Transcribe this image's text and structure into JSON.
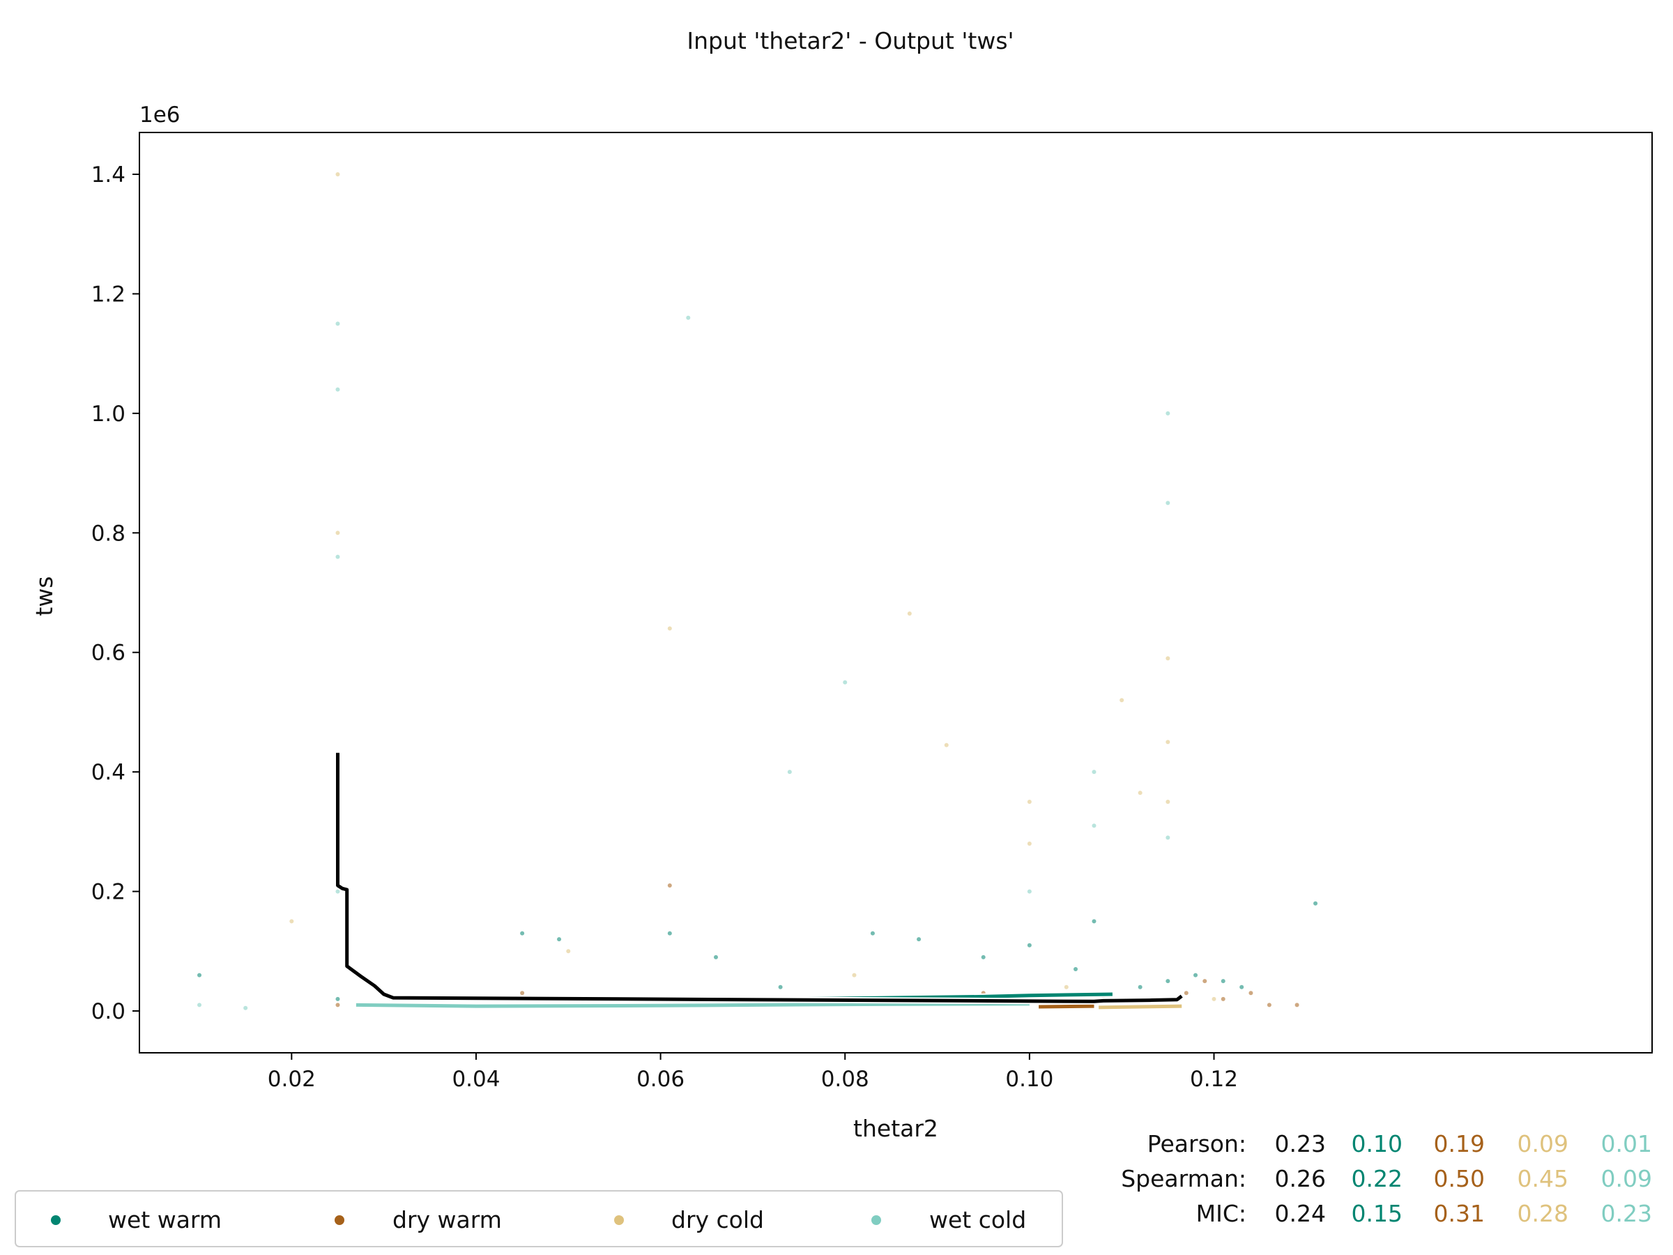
{
  "chart_data": {
    "type": "scatter",
    "title": "Input 'thetar2' - Output 'tws'",
    "xlabel": "thetar2",
    "ylabel": "tws",
    "y_offset_label": "1e6",
    "xlim": [
      0.0035,
      0.1675
    ],
    "ylim": [
      -0.07,
      1.47
    ],
    "x_ticks": [
      0.02,
      0.04,
      0.06,
      0.08,
      0.1,
      0.12
    ],
    "x_tick_labels": [
      "0.02",
      "0.04",
      "0.06",
      "0.08",
      "0.10",
      "0.12"
    ],
    "y_ticks": [
      0.0,
      0.2,
      0.4,
      0.6,
      0.8,
      1.0,
      1.2,
      1.4
    ],
    "y_tick_labels": [
      "0.0",
      "0.2",
      "0.4",
      "0.6",
      "0.8",
      "1.0",
      "1.2",
      "1.4"
    ],
    "grid": false,
    "legend_position": "bottom-left, below axes",
    "series": [
      {
        "name": "wet warm",
        "color": "#018571",
        "points": [
          [
            0.01,
            0.06
          ],
          [
            0.025,
            0.02
          ],
          [
            0.045,
            0.13
          ],
          [
            0.049,
            0.12
          ],
          [
            0.061,
            0.13
          ],
          [
            0.066,
            0.09
          ],
          [
            0.073,
            0.04
          ],
          [
            0.083,
            0.13
          ],
          [
            0.088,
            0.12
          ],
          [
            0.095,
            0.09
          ],
          [
            0.1,
            0.11
          ],
          [
            0.105,
            0.07
          ],
          [
            0.107,
            0.15
          ],
          [
            0.112,
            0.04
          ],
          [
            0.115,
            0.05
          ],
          [
            0.118,
            0.06
          ],
          [
            0.121,
            0.05
          ],
          [
            0.123,
            0.04
          ],
          [
            0.131,
            0.18
          ]
        ],
        "trend": [
          [
            0.0685,
            0.019
          ],
          [
            0.095,
            0.024
          ],
          [
            0.1,
            0.026
          ],
          [
            0.109,
            0.028
          ]
        ]
      },
      {
        "name": "dry warm",
        "color": "#a6611a",
        "points": [
          [
            0.025,
            0.01
          ],
          [
            0.045,
            0.03
          ],
          [
            0.061,
            0.21
          ],
          [
            0.08,
            0.02
          ],
          [
            0.095,
            0.03
          ],
          [
            0.1,
            0.02
          ],
          [
            0.108,
            0.02
          ],
          [
            0.117,
            0.03
          ],
          [
            0.119,
            0.05
          ],
          [
            0.121,
            0.02
          ],
          [
            0.124,
            0.03
          ],
          [
            0.126,
            0.01
          ],
          [
            0.129,
            0.01
          ]
        ],
        "trend": [
          [
            0.101,
            0.007
          ],
          [
            0.107,
            0.008
          ]
        ]
      },
      {
        "name": "dry cold",
        "color": "#dfc27d",
        "points": [
          [
            0.025,
            1.4
          ],
          [
            0.025,
            0.8
          ],
          [
            0.061,
            0.64
          ],
          [
            0.087,
            0.665
          ],
          [
            0.091,
            0.445
          ],
          [
            0.1,
            0.35
          ],
          [
            0.1,
            0.28
          ],
          [
            0.11,
            0.52
          ],
          [
            0.112,
            0.365
          ],
          [
            0.115,
            0.59
          ],
          [
            0.115,
            0.45
          ],
          [
            0.115,
            0.35
          ],
          [
            0.02,
            0.15
          ],
          [
            0.05,
            0.1
          ],
          [
            0.064,
            0.02
          ],
          [
            0.081,
            0.06
          ],
          [
            0.104,
            0.04
          ],
          [
            0.12,
            0.02
          ]
        ],
        "trend": [
          [
            0.1075,
            0.006
          ],
          [
            0.1165,
            0.008
          ]
        ]
      },
      {
        "name": "wet cold",
        "color": "#80cdc1",
        "points": [
          [
            0.01,
            0.01
          ],
          [
            0.015,
            0.005
          ],
          [
            0.025,
            0.2
          ],
          [
            0.025,
            1.15
          ],
          [
            0.025,
            1.04
          ],
          [
            0.025,
            0.76
          ],
          [
            0.063,
            1.16
          ],
          [
            0.074,
            0.4
          ],
          [
            0.08,
            0.55
          ],
          [
            0.1,
            0.2
          ],
          [
            0.107,
            0.4
          ],
          [
            0.107,
            0.31
          ],
          [
            0.115,
            1.0
          ],
          [
            0.115,
            0.85
          ],
          [
            0.115,
            0.29
          ],
          [
            0.04,
            0.02
          ],
          [
            0.07,
            0.01
          ],
          [
            0.09,
            0.01
          ],
          [
            0.11,
            0.01
          ]
        ],
        "trend": [
          [
            0.027,
            0.01
          ],
          [
            0.04,
            0.008
          ],
          [
            0.06,
            0.009
          ],
          [
            0.08,
            0.011
          ],
          [
            0.1,
            0.012
          ]
        ]
      }
    ],
    "overall_trend": {
      "name": "all",
      "color": "#000000",
      "points": [
        [
          0.025,
          0.432
        ],
        [
          0.025,
          0.21
        ],
        [
          0.0255,
          0.205
        ],
        [
          0.026,
          0.203
        ],
        [
          0.026,
          0.075
        ],
        [
          0.0275,
          0.058
        ],
        [
          0.029,
          0.042
        ],
        [
          0.03,
          0.028
        ],
        [
          0.031,
          0.022
        ],
        [
          0.107,
          0.016
        ],
        [
          0.108,
          0.017
        ],
        [
          0.113,
          0.018
        ],
        [
          0.116,
          0.019
        ],
        [
          0.1165,
          0.025
        ]
      ]
    },
    "stats": {
      "rows": [
        {
          "label": "Pearson:",
          "all": "0.23",
          "values": [
            "0.10",
            "0.19",
            "0.09",
            "0.01"
          ]
        },
        {
          "label": "Spearman:",
          "all": "0.26",
          "values": [
            "0.22",
            "0.50",
            "0.45",
            "0.09"
          ]
        },
        {
          "label": "MIC:",
          "all": "0.24",
          "values": [
            "0.15",
            "0.31",
            "0.28",
            "0.23"
          ]
        }
      ]
    }
  }
}
